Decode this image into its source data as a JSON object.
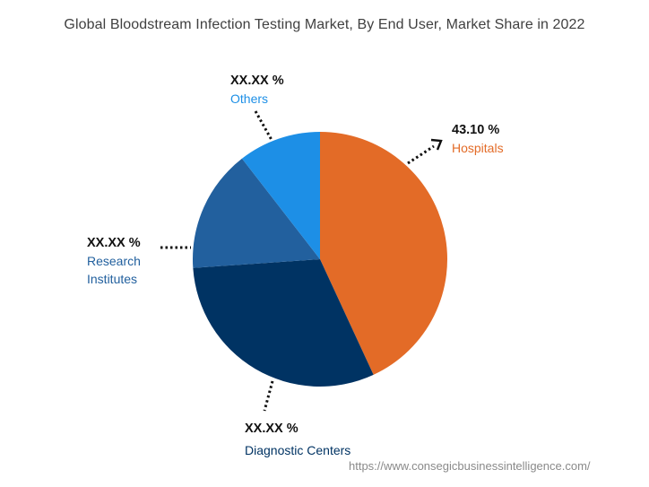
{
  "chart_data": {
    "type": "pie",
    "title": "Global Bloodstream Infection Testing Market, By End User, Market Share in 2022",
    "start_angle_deg": 0,
    "direction": "clockwise",
    "slices": [
      {
        "label": "Hospitals",
        "value": 43.1,
        "display": "43.10 %",
        "color": "#E36B27"
      },
      {
        "label": "Diagnostic Centers",
        "value": 30.8,
        "display": "XX.XX %",
        "color": "#003363"
      },
      {
        "label": "Research Institutes",
        "value": 15.6,
        "display": "XX.XX %",
        "color": "#22609E"
      },
      {
        "label": "Others",
        "value": 10.5,
        "display": "XX.XX %",
        "color": "#1D8FE6"
      }
    ],
    "legend": "none (callout labels)"
  },
  "labels": {
    "hospitals": {
      "value": "43.10 %",
      "name": "Hospitals",
      "color": "#E36B27"
    },
    "diagnostic": {
      "value": "XX.XX %",
      "name": "Diagnostic Centers",
      "color": "#003363"
    },
    "research": {
      "value": "XX.XX %",
      "name_line1": "Research",
      "name_line2": "Institutes",
      "color": "#22609E"
    },
    "others": {
      "value": "XX.XX %",
      "name": "Others",
      "color": "#1D8FE6"
    }
  },
  "source_url": "https://www.consegicbusinessintelligence.com/"
}
